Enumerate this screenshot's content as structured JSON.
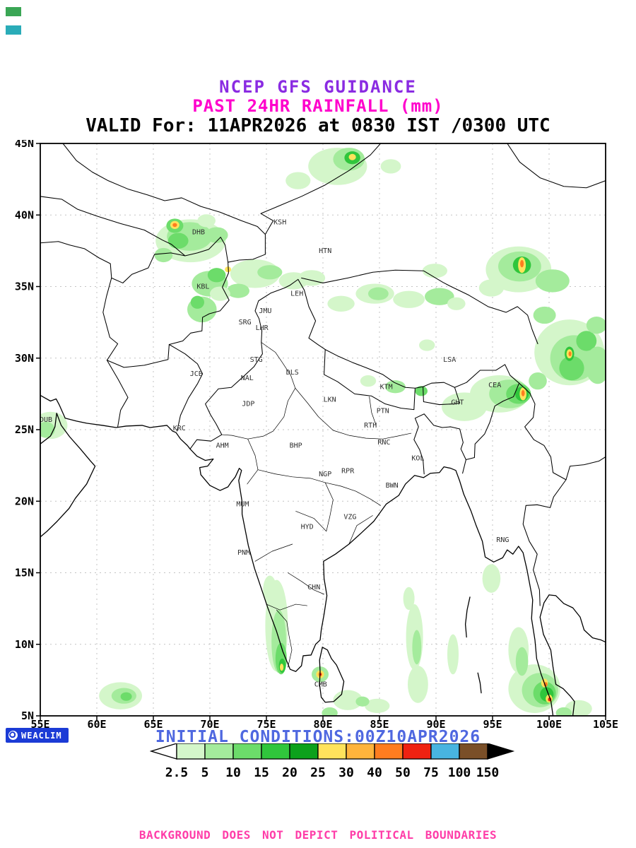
{
  "header": {
    "title1": "NCEP GFS GUIDANCE",
    "title2": "PAST 24HR RAINFALL (mm)",
    "valid_line": "VALID For: 11APR2026 at 0830 IST /0300 UTC"
  },
  "colors": {
    "title1": "#8a2be2",
    "title2": "#ff00cc",
    "valid": "#000000",
    "initial_conditions": "#4f68e0",
    "disclaimer": "#ff3da8",
    "logo_bg": "#1b3bd6",
    "grid": "#c3c3c3",
    "station_label": "#2e2e2e"
  },
  "artifacts": {
    "chip1_color": "#3aa655",
    "chip2_color": "#2aacb8"
  },
  "map": {
    "lon_min": 55,
    "lon_max": 105,
    "lat_min": 5,
    "lat_max": 45,
    "lon_tick_values": [
      55,
      60,
      65,
      70,
      75,
      80,
      85,
      90,
      95,
      100,
      105
    ],
    "lat_tick_values": [
      5,
      10,
      15,
      20,
      25,
      30,
      35,
      40,
      45
    ],
    "x_tick_labels": [
      "55E",
      "60E",
      "65E",
      "70E",
      "75E",
      "80E",
      "85E",
      "90E",
      "95E",
      "100E",
      "105E"
    ],
    "y_tick_labels": [
      "5N",
      "10N",
      "15N",
      "20N",
      "25N",
      "30N",
      "35N",
      "40N",
      "45N"
    ],
    "stations": [
      {
        "code": "KSH",
        "lon": 76.2,
        "lat": 39.5
      },
      {
        "code": "DHB",
        "lon": 69.0,
        "lat": 38.8
      },
      {
        "code": "HTN",
        "lon": 80.2,
        "lat": 37.5
      },
      {
        "code": "KBL",
        "lon": 69.4,
        "lat": 35.0
      },
      {
        "code": "LEH",
        "lon": 77.7,
        "lat": 34.5
      },
      {
        "code": "JMU",
        "lon": 74.9,
        "lat": 33.3
      },
      {
        "code": "SRG",
        "lon": 73.1,
        "lat": 32.5
      },
      {
        "code": "LHR",
        "lon": 74.6,
        "lat": 32.1
      },
      {
        "code": "STG",
        "lon": 74.1,
        "lat": 29.9
      },
      {
        "code": "JCB",
        "lon": 68.8,
        "lat": 28.9
      },
      {
        "code": "NAL",
        "lon": 73.3,
        "lat": 28.6
      },
      {
        "code": "DLS",
        "lon": 77.3,
        "lat": 29.0
      },
      {
        "code": "KTM",
        "lon": 85.6,
        "lat": 28.0
      },
      {
        "code": "LSA",
        "lon": 91.2,
        "lat": 29.9
      },
      {
        "code": "JDP",
        "lon": 73.4,
        "lat": 26.8
      },
      {
        "code": "LKN",
        "lon": 80.6,
        "lat": 27.1
      },
      {
        "code": "PTN",
        "lon": 85.3,
        "lat": 26.3
      },
      {
        "code": "GHT",
        "lon": 91.9,
        "lat": 26.9
      },
      {
        "code": "CEA",
        "lon": 95.2,
        "lat": 28.1
      },
      {
        "code": "DUB",
        "lon": 55.5,
        "lat": 25.7
      },
      {
        "code": "KRC",
        "lon": 67.3,
        "lat": 25.1
      },
      {
        "code": "RTH",
        "lon": 84.2,
        "lat": 25.3
      },
      {
        "code": "AHM",
        "lon": 71.1,
        "lat": 23.9
      },
      {
        "code": "BHP",
        "lon": 77.6,
        "lat": 23.9
      },
      {
        "code": "RNC",
        "lon": 85.4,
        "lat": 24.1
      },
      {
        "code": "KOL",
        "lon": 88.4,
        "lat": 23.0
      },
      {
        "code": "NGP",
        "lon": 80.2,
        "lat": 21.9
      },
      {
        "code": "RPR",
        "lon": 82.2,
        "lat": 22.1
      },
      {
        "code": "BWN",
        "lon": 86.1,
        "lat": 21.1
      },
      {
        "code": "MUM",
        "lon": 72.9,
        "lat": 19.8
      },
      {
        "code": "HYD",
        "lon": 78.6,
        "lat": 18.2
      },
      {
        "code": "VZG",
        "lon": 82.4,
        "lat": 18.9
      },
      {
        "code": "PNM",
        "lon": 73.0,
        "lat": 16.4
      },
      {
        "code": "CHN",
        "lon": 79.2,
        "lat": 14.0
      },
      {
        "code": "RNG",
        "lon": 95.9,
        "lat": 17.3
      },
      {
        "code": "CMB",
        "lon": 79.8,
        "lat": 7.2
      }
    ],
    "rain_patches": [
      [
        68.3,
        38.2,
        3.1,
        1.5,
        0
      ],
      [
        68.2,
        38.5,
        2.0,
        1.0,
        1
      ],
      [
        67.2,
        38.2,
        0.9,
        0.55,
        2
      ],
      [
        66.9,
        39.25,
        0.75,
        0.5,
        2
      ],
      [
        66.9,
        39.3,
        0.4,
        0.28,
        5
      ],
      [
        66.9,
        39.3,
        0.2,
        0.14,
        7
      ],
      [
        70.6,
        38.6,
        1.0,
        0.55,
        1
      ],
      [
        69.7,
        39.6,
        0.8,
        0.45,
        0
      ],
      [
        65.9,
        37.2,
        0.8,
        0.5,
        1
      ],
      [
        81.3,
        43.4,
        2.6,
        1.3,
        0
      ],
      [
        82.3,
        43.9,
        1.4,
        0.8,
        1
      ],
      [
        82.6,
        44.0,
        0.7,
        0.45,
        3
      ],
      [
        82.6,
        44.05,
        0.32,
        0.22,
        5
      ],
      [
        77.8,
        42.4,
        1.1,
        0.6,
        0
      ],
      [
        86.0,
        43.4,
        0.9,
        0.5,
        0
      ],
      [
        74.0,
        35.9,
        2.2,
        1.0,
        0
      ],
      [
        75.3,
        36.0,
        1.1,
        0.5,
        1
      ],
      [
        77.4,
        35.4,
        1.3,
        0.6,
        0
      ],
      [
        79.0,
        35.6,
        1.2,
        0.55,
        0
      ],
      [
        72.5,
        34.7,
        1.0,
        0.5,
        1
      ],
      [
        70.0,
        35.2,
        1.6,
        0.9,
        1
      ],
      [
        70.6,
        35.8,
        0.8,
        0.5,
        2
      ],
      [
        71.6,
        36.2,
        0.28,
        0.2,
        5
      ],
      [
        69.3,
        33.4,
        1.3,
        0.9,
        1
      ],
      [
        68.9,
        33.9,
        0.6,
        0.45,
        2
      ],
      [
        70.9,
        34.5,
        0.9,
        0.5,
        0
      ],
      [
        81.6,
        33.8,
        1.2,
        0.55,
        0
      ],
      [
        84.6,
        34.5,
        1.7,
        0.7,
        0
      ],
      [
        84.9,
        34.5,
        0.9,
        0.45,
        1
      ],
      [
        87.6,
        34.1,
        1.4,
        0.6,
        0
      ],
      [
        90.3,
        34.3,
        1.3,
        0.6,
        1
      ],
      [
        91.8,
        33.8,
        0.8,
        0.45,
        0
      ],
      [
        89.2,
        30.9,
        0.7,
        0.4,
        0
      ],
      [
        89.9,
        36.1,
        1.1,
        0.5,
        0
      ],
      [
        97.3,
        36.2,
        2.9,
        1.6,
        0
      ],
      [
        97.4,
        36.4,
        1.9,
        1.05,
        1
      ],
      [
        97.6,
        36.5,
        0.8,
        0.6,
        3
      ],
      [
        97.6,
        36.5,
        0.34,
        0.55,
        5
      ],
      [
        97.6,
        36.6,
        0.16,
        0.26,
        7
      ],
      [
        100.3,
        35.4,
        1.5,
        0.8,
        1
      ],
      [
        94.9,
        34.9,
        1.1,
        0.6,
        0
      ],
      [
        99.6,
        33.0,
        1.0,
        0.6,
        1
      ],
      [
        101.8,
        30.4,
        3.1,
        2.3,
        0
      ],
      [
        102.2,
        30.0,
        2.1,
        1.6,
        1
      ],
      [
        102.0,
        29.3,
        1.1,
        0.85,
        2
      ],
      [
        103.3,
        31.2,
        0.9,
        0.7,
        2
      ],
      [
        101.8,
        30.3,
        0.42,
        0.5,
        3
      ],
      [
        101.8,
        30.3,
        0.26,
        0.32,
        5
      ],
      [
        101.85,
        30.3,
        0.13,
        0.17,
        7
      ],
      [
        104.2,
        32.3,
        0.9,
        0.6,
        1
      ],
      [
        99.0,
        28.4,
        0.8,
        0.6,
        1
      ],
      [
        104.3,
        29.5,
        1.1,
        1.3,
        1
      ],
      [
        95.6,
        27.5,
        2.6,
        1.3,
        0
      ],
      [
        96.5,
        27.5,
        1.8,
        1.0,
        1
      ],
      [
        97.3,
        27.5,
        1.1,
        0.7,
        2
      ],
      [
        97.6,
        27.5,
        0.6,
        0.5,
        3
      ],
      [
        97.7,
        27.5,
        0.3,
        0.45,
        5
      ],
      [
        97.7,
        27.55,
        0.15,
        0.22,
        7
      ],
      [
        92.6,
        26.7,
        1.3,
        0.7,
        1
      ],
      [
        92.5,
        26.6,
        2.0,
        1.0,
        0
      ],
      [
        86.4,
        28.0,
        0.9,
        0.45,
        1
      ],
      [
        88.7,
        27.7,
        0.55,
        0.35,
        2
      ],
      [
        84.0,
        28.4,
        0.7,
        0.4,
        0
      ],
      [
        75.9,
        11.3,
        1.0,
        3.2,
        0
      ],
      [
        76.1,
        10.2,
        0.65,
        2.2,
        1
      ],
      [
        76.3,
        9.0,
        0.5,
        1.1,
        2
      ],
      [
        76.4,
        8.5,
        0.3,
        0.5,
        3
      ],
      [
        76.35,
        8.4,
        0.16,
        0.25,
        5
      ],
      [
        75.3,
        13.8,
        0.6,
        1.0,
        0
      ],
      [
        79.75,
        7.9,
        0.75,
        0.55,
        1
      ],
      [
        79.75,
        7.9,
        0.35,
        0.28,
        5
      ],
      [
        79.75,
        7.9,
        0.2,
        0.16,
        6
      ],
      [
        79.78,
        7.9,
        0.1,
        0.09,
        8
      ],
      [
        82.2,
        6.1,
        1.3,
        0.7,
        0
      ],
      [
        84.8,
        5.7,
        1.1,
        0.5,
        0
      ],
      [
        80.6,
        5.2,
        0.7,
        0.4,
        1
      ],
      [
        83.5,
        6.0,
        0.6,
        0.35,
        1
      ],
      [
        62.1,
        6.4,
        1.9,
        0.95,
        0
      ],
      [
        62.4,
        6.4,
        1.1,
        0.55,
        1
      ],
      [
        62.6,
        6.35,
        0.5,
        0.3,
        2
      ],
      [
        88.1,
        10.5,
        0.75,
        2.3,
        0
      ],
      [
        88.4,
        7.2,
        0.9,
        1.3,
        0
      ],
      [
        88.3,
        9.8,
        0.4,
        1.2,
        1
      ],
      [
        91.5,
        9.3,
        0.5,
        1.4,
        0
      ],
      [
        87.6,
        13.2,
        0.5,
        0.8,
        0
      ],
      [
        98.7,
        6.9,
        2.3,
        1.7,
        0
      ],
      [
        99.2,
        6.8,
        1.6,
        1.2,
        1
      ],
      [
        99.6,
        6.6,
        1.0,
        0.8,
        2
      ],
      [
        99.8,
        6.5,
        0.6,
        0.5,
        3
      ],
      [
        99.6,
        7.3,
        0.3,
        0.3,
        5
      ],
      [
        99.7,
        7.2,
        0.16,
        0.16,
        7
      ],
      [
        100.0,
        6.2,
        0.3,
        0.28,
        5
      ],
      [
        100.05,
        6.15,
        0.15,
        0.14,
        8
      ],
      [
        97.3,
        9.6,
        0.9,
        1.6,
        0
      ],
      [
        97.6,
        8.8,
        0.55,
        1.0,
        1
      ],
      [
        102.6,
        5.5,
        1.2,
        0.6,
        0
      ],
      [
        101.3,
        5.2,
        0.7,
        0.4,
        1
      ],
      [
        55.9,
        25.3,
        1.5,
        0.95,
        0
      ],
      [
        55.5,
        25.0,
        0.8,
        0.55,
        1
      ],
      [
        94.9,
        14.6,
        0.8,
        1.0,
        0
      ]
    ]
  },
  "legend": {
    "labels": [
      "2.5",
      "5",
      "10",
      "15",
      "20",
      "25",
      "30",
      "40",
      "50",
      "75",
      "100",
      "150"
    ],
    "colors": [
      "#d4f6ca",
      "#a4eb9c",
      "#6cdc6a",
      "#30c63c",
      "#0ca11c",
      "#ffe35c",
      "#ffb43c",
      "#ff7d1f",
      "#ef2211",
      "#48b4e0",
      "#7a4f28"
    ],
    "below_min_color": "#ffffff",
    "above_max_color": "#000000"
  },
  "footer": {
    "logo_text": "WEACLIM",
    "initial_conditions": "INITIAL CONDITIONS:00Z10APR2026",
    "disclaimer": "BACKGROUND DOES NOT DEPICT POLITICAL BOUNDARIES"
  }
}
